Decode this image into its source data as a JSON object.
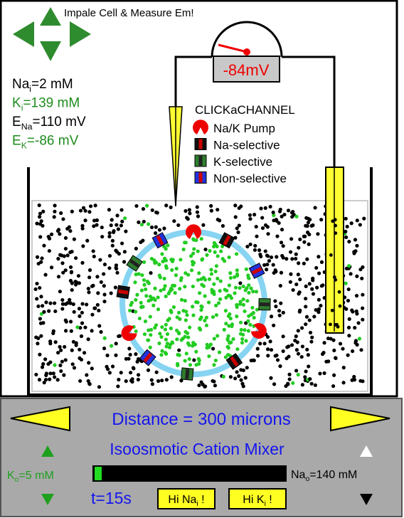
{
  "title": "Impale Cell & Measure Em!",
  "concentrations": [
    {
      "base": "Na",
      "sub": "i",
      "rest": "=2 mM"
    },
    {
      "base": "K",
      "sub": "i",
      "rest": "=139 mM"
    },
    {
      "base": "E",
      "sub": "Na",
      "rest": "=110 mV"
    },
    {
      "base": "E",
      "sub": "K",
      "rest": "=-86 mV"
    }
  ],
  "meter": "-84mV",
  "legend": {
    "title": "CLICKaCHANNEL",
    "items": [
      "Na/K Pump",
      "Na-selective",
      "K-selective",
      "Non-selective"
    ]
  },
  "distance": "Distance = 300 microns",
  "mixer": "Isoosmotic Cation Mixer",
  "outside_k": {
    "base": "K",
    "sub": "o",
    "rest": "=5 mM"
  },
  "outside_na": {
    "base": "Na",
    "sub": "o",
    "rest": "=140 mM"
  },
  "time": "t=15s",
  "buttons": [
    {
      "base": "Hi Na",
      "sub": "i",
      "rest": " !"
    },
    {
      "base": "Hi K",
      "sub": "i",
      "rest": " !"
    }
  ]
}
